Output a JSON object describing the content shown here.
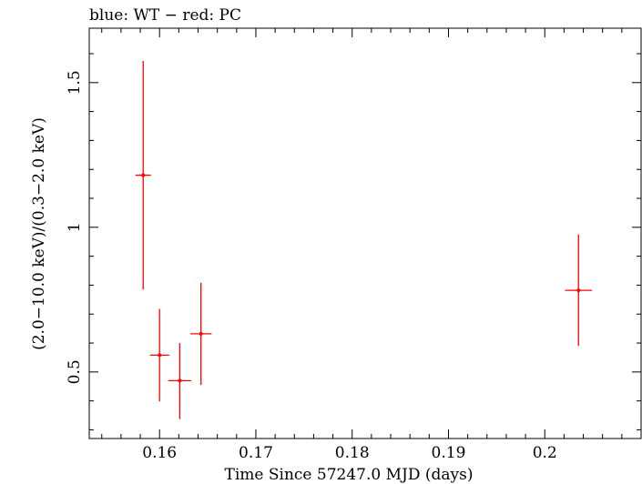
{
  "chart_data": {
    "type": "scatter",
    "title": "blue: WT − red: PC",
    "xlabel": "Time Since 57247.0 MJD (days)",
    "ylabel": "(2.0−10.0 keV)/(0.3−2.0 keV)",
    "xlim": [
      0.1527,
      0.21
    ],
    "ylim": [
      0.27,
      1.688
    ],
    "x_major_ticks": [
      0.16,
      0.17,
      0.18,
      0.19,
      0.2
    ],
    "x_tick_labels": [
      "0.16",
      "0.17",
      "0.18",
      "0.19",
      "0.2"
    ],
    "y_major_ticks": [
      0.5,
      1.0,
      1.5
    ],
    "y_tick_labels": [
      "0.5",
      "1",
      "1.5"
    ],
    "series": [
      {
        "name": "PC",
        "color": "#ff0000",
        "points": [
          {
            "x": 0.1583,
            "xerr": 0.0008,
            "y": 1.18,
            "ylo": 0.785,
            "yhi": 1.575
          },
          {
            "x": 0.16,
            "xerr": 0.001,
            "y": 0.558,
            "ylo": 0.398,
            "yhi": 0.718
          },
          {
            "x": 0.1621,
            "xerr": 0.0012,
            "y": 0.47,
            "ylo": 0.337,
            "yhi": 0.6
          },
          {
            "x": 0.1643,
            "xerr": 0.0011,
            "y": 0.632,
            "ylo": 0.455,
            "yhi": 0.808
          },
          {
            "x": 0.2035,
            "xerr": 0.0014,
            "y": 0.782,
            "ylo": 0.59,
            "yhi": 0.975
          }
        ]
      }
    ]
  }
}
